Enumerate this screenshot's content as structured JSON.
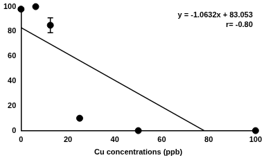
{
  "chart_data": {
    "type": "scatter",
    "x_label": "Cu concentrations (ppb)",
    "annotations": [
      "y = -1.0632x + 83.053",
      "r= -0.80"
    ],
    "series": [
      {
        "type": "scatter",
        "color": "#000000",
        "marker": "circle",
        "x": [
          0,
          6.25,
          12.5,
          25,
          50,
          100
        ],
        "values": [
          98,
          100,
          85,
          10,
          0,
          0
        ],
        "error": [
          1,
          0,
          6,
          1,
          0,
          0
        ]
      },
      {
        "type": "line",
        "color": "#000000",
        "line_style": "solid",
        "x": [
          0,
          78.1
        ],
        "values": [
          83.053,
          0
        ]
      }
    ],
    "xlim": [
      0,
      100
    ],
    "xticks": [
      0,
      20,
      40,
      60,
      80,
      100
    ],
    "ylim": [
      0,
      100
    ],
    "yticks": [
      0,
      20,
      40,
      60,
      80,
      100
    ],
    "grid": false,
    "tick_labels": true
  }
}
